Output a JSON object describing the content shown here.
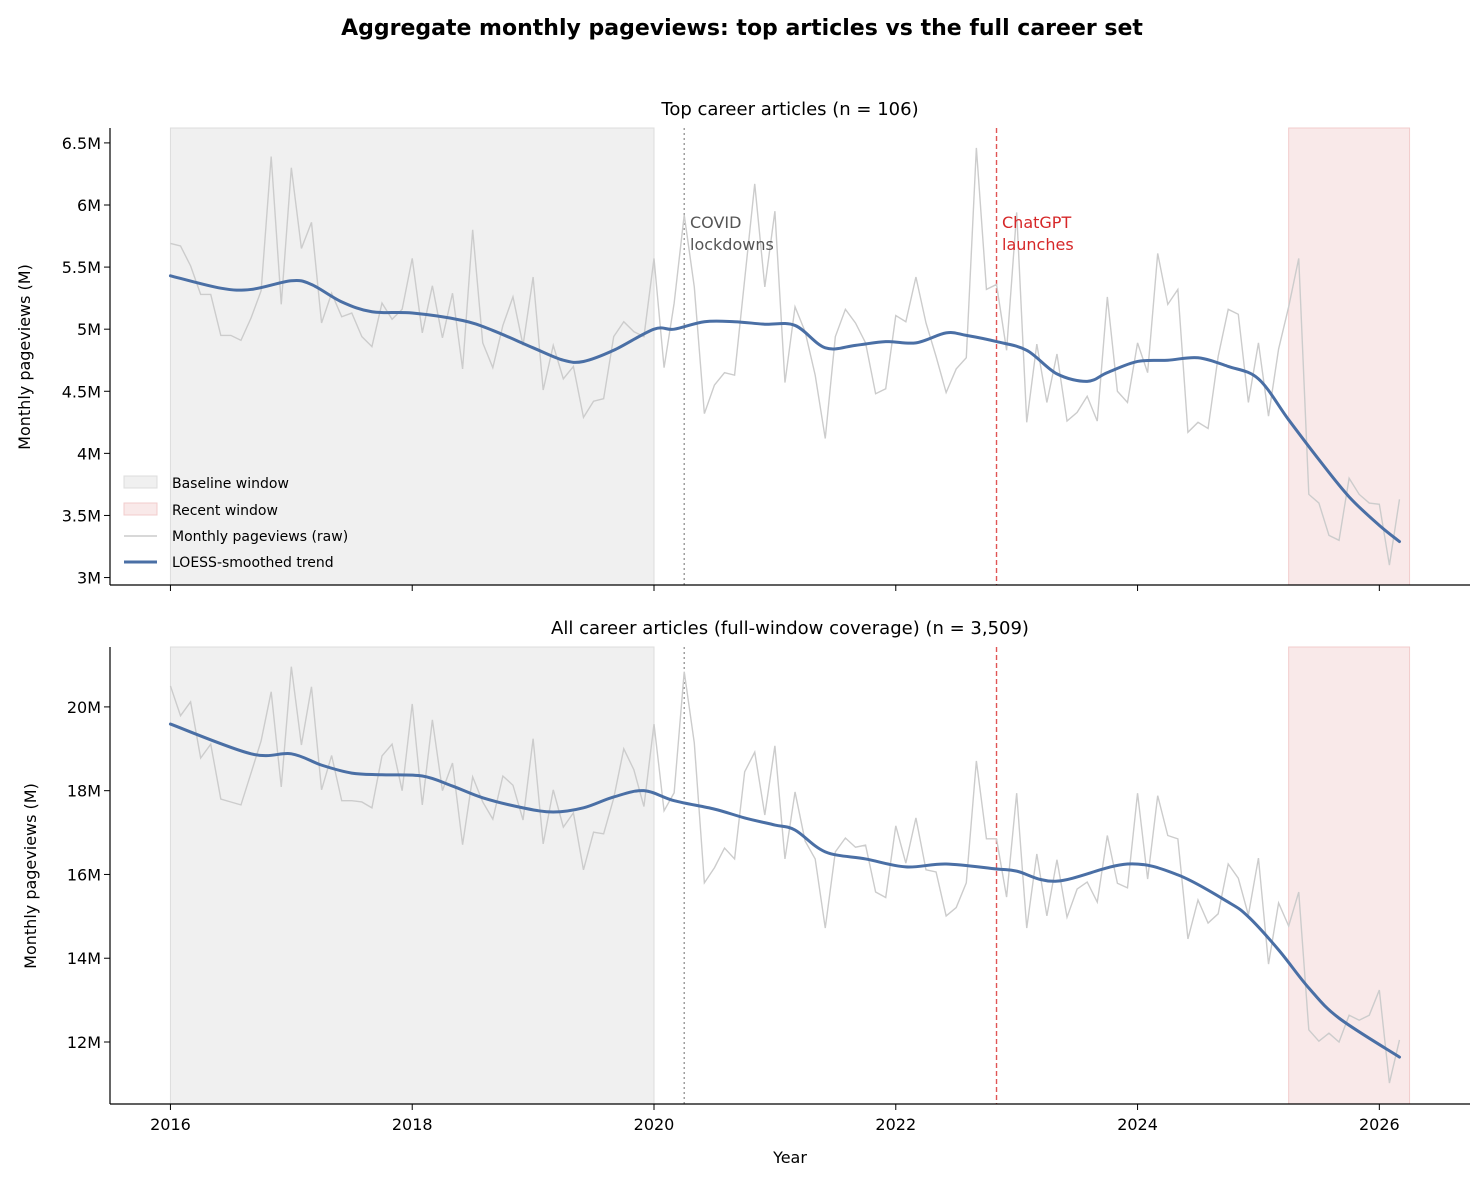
{
  "title": "Aggregate monthly pageviews: top articles vs the full career set",
  "colors": {
    "raw": "#cccccc",
    "trend": "#4a6fa5",
    "baseline_fill": "#f0f0f0",
    "recent_fill": "#f9e9e9",
    "covid_line": "#999999",
    "chatgpt_line": "#e05555",
    "covid_text": "#555555",
    "chatgpt_text": "#d62728"
  },
  "legend": {
    "placement": "lower-left",
    "items": [
      "Baseline window",
      "Recent window",
      "Monthly pageviews (raw)",
      "LOESS-smoothed trend"
    ]
  },
  "chart_data": [
    {
      "type": "line",
      "title": "Top career articles  (n = 106)",
      "xlabel": "",
      "ylabel": "Monthly pageviews (M)",
      "xlim": [
        "2015-07",
        "2026-10"
      ],
      "ylim": [
        2.94,
        6.62
      ],
      "x_ticks": [
        "2016",
        "2018",
        "2020",
        "2022",
        "2024",
        "2026"
      ],
      "x_tick_labels_shown": false,
      "y_ticks": [
        3,
        3.5,
        4,
        4.5,
        5,
        5.5,
        6,
        6.5
      ],
      "y_tick_labels": [
        "3M",
        "3.5M",
        "4M",
        "4.5M",
        "5M",
        "5.5M",
        "6M",
        "6.5M"
      ],
      "grid": false,
      "shaded_windows": [
        {
          "name": "Baseline window",
          "from": "2016-01",
          "to": "2020-01"
        },
        {
          "name": "Recent window",
          "from": "2025-04",
          "to": "2026-04"
        }
      ],
      "events": [
        {
          "label": "COVID\nlockdowns",
          "line1": "COVID",
          "line2": "lockdowns",
          "date": "2020-04",
          "style": "dotted"
        },
        {
          "label": "ChatGPT\nlaunches",
          "line1": "ChatGPT",
          "line2": "launches",
          "date": "2022-11",
          "style": "dashed"
        }
      ],
      "series": [
        {
          "name": "Monthly pageviews (raw)",
          "start": "2016-01",
          "frequency": "monthly",
          "values": [
            5.69,
            5.67,
            5.51,
            5.28,
            5.28,
            4.95,
            4.95,
            4.91,
            5.09,
            5.31,
            6.39,
            5.2,
            6.3,
            5.65,
            5.86,
            5.05,
            5.29,
            5.1,
            5.13,
            4.94,
            4.86,
            5.21,
            5.08,
            5.16,
            5.57,
            4.97,
            5.35,
            4.93,
            5.29,
            4.68,
            5.8,
            4.89,
            4.69,
            5.03,
            5.26,
            4.87,
            5.42,
            4.51,
            4.87,
            4.6,
            4.7,
            4.29,
            4.42,
            4.44,
            4.94,
            5.06,
            4.98,
            4.94,
            5.57,
            4.69,
            5.21,
            5.92,
            5.34,
            4.32,
            4.55,
            4.65,
            4.63,
            5.4,
            6.17,
            5.34,
            5.95,
            4.57,
            5.18,
            4.98,
            4.63,
            4.12,
            4.94,
            5.16,
            5.05,
            4.89,
            4.48,
            4.52,
            5.11,
            5.06,
            5.42,
            5.05,
            4.78,
            4.49,
            4.68,
            4.77,
            6.46,
            5.32,
            5.36,
            4.83,
            5.94,
            4.25,
            4.88,
            4.41,
            4.8,
            4.26,
            4.33,
            4.46,
            4.26,
            5.26,
            4.5,
            4.41,
            4.89,
            4.65,
            5.61,
            5.2,
            5.32,
            4.17,
            4.25,
            4.2,
            4.78,
            5.16,
            5.12,
            4.41,
            4.89,
            4.3,
            4.84,
            5.18,
            5.57,
            3.67,
            3.6,
            3.34,
            3.3,
            3.8,
            3.67,
            3.6,
            3.59,
            3.1,
            3.63
          ]
        },
        {
          "name": "LOESS-smoothed trend",
          "points": [
            [
              "2016-01",
              5.43
            ],
            [
              "2016-06",
              5.33
            ],
            [
              "2016-09",
              5.32
            ],
            [
              "2017-01",
              5.39
            ],
            [
              "2017-03",
              5.36
            ],
            [
              "2017-06",
              5.22
            ],
            [
              "2017-09",
              5.14
            ],
            [
              "2018-01",
              5.13
            ],
            [
              "2018-06",
              5.07
            ],
            [
              "2018-09",
              4.99
            ],
            [
              "2019-01",
              4.85
            ],
            [
              "2019-04",
              4.75
            ],
            [
              "2019-06",
              4.74
            ],
            [
              "2019-09",
              4.83
            ],
            [
              "2020-01",
              5.0
            ],
            [
              "2020-03",
              5.0
            ],
            [
              "2020-06",
              5.06
            ],
            [
              "2020-09",
              5.06
            ],
            [
              "2020-12",
              5.04
            ],
            [
              "2021-03",
              5.03
            ],
            [
              "2021-06",
              4.85
            ],
            [
              "2021-09",
              4.87
            ],
            [
              "2021-12",
              4.9
            ],
            [
              "2022-03",
              4.89
            ],
            [
              "2022-06",
              4.97
            ],
            [
              "2022-08",
              4.95
            ],
            [
              "2022-11",
              4.9
            ],
            [
              "2023-02",
              4.83
            ],
            [
              "2023-05",
              4.64
            ],
            [
              "2023-08",
              4.58
            ],
            [
              "2023-10",
              4.65
            ],
            [
              "2024-01",
              4.74
            ],
            [
              "2024-04",
              4.75
            ],
            [
              "2024-07",
              4.77
            ],
            [
              "2024-10",
              4.7
            ],
            [
              "2025-01",
              4.6
            ],
            [
              "2025-04",
              4.27
            ],
            [
              "2025-07",
              3.95
            ],
            [
              "2025-10",
              3.65
            ],
            [
              "2026-01",
              3.42
            ],
            [
              "2026-03",
              3.29
            ]
          ]
        }
      ]
    },
    {
      "type": "line",
      "title": "All career articles (full-window coverage)  (n = 3,509)",
      "xlabel": "Year",
      "ylabel": "Monthly pageviews (M)",
      "xlim": [
        "2015-07",
        "2026-10"
      ],
      "ylim": [
        10.52,
        21.43
      ],
      "x_ticks": [
        "2016",
        "2018",
        "2020",
        "2022",
        "2024",
        "2026"
      ],
      "x_tick_labels": [
        "2016",
        "2018",
        "2020",
        "2022",
        "2024",
        "2026"
      ],
      "y_ticks": [
        12,
        14,
        16,
        18,
        20
      ],
      "y_tick_labels": [
        "12M",
        "14M",
        "16M",
        "18M",
        "20M"
      ],
      "grid": false,
      "shaded_windows": [
        {
          "name": "Baseline window",
          "from": "2016-01",
          "to": "2020-01"
        },
        {
          "name": "Recent window",
          "from": "2025-04",
          "to": "2026-04"
        }
      ],
      "events": [
        {
          "date": "2020-04",
          "style": "dotted"
        },
        {
          "date": "2022-11",
          "style": "dashed"
        }
      ],
      "series": [
        {
          "name": "Monthly pageviews (raw)",
          "start": "2016-01",
          "frequency": "monthly",
          "values": [
            20.5,
            19.79,
            20.12,
            18.78,
            19.11,
            17.8,
            17.73,
            17.66,
            18.42,
            19.19,
            20.36,
            18.09,
            20.96,
            19.09,
            20.48,
            18.02,
            18.84,
            17.76,
            17.76,
            17.73,
            17.59,
            18.83,
            19.11,
            18.0,
            20.07,
            17.66,
            19.69,
            18.0,
            18.66,
            16.71,
            18.33,
            17.73,
            17.32,
            18.35,
            18.13,
            17.3,
            19.24,
            16.73,
            18.02,
            17.13,
            17.47,
            16.11,
            17.01,
            16.97,
            17.82,
            19.0,
            18.5,
            17.62,
            19.59,
            17.52,
            17.95,
            20.84,
            19.14,
            15.8,
            16.16,
            16.63,
            16.37,
            18.45,
            18.92,
            17.42,
            19.07,
            16.37,
            17.97,
            16.8,
            16.37,
            14.72,
            16.54,
            16.87,
            16.65,
            16.7,
            15.58,
            15.45,
            17.16,
            16.27,
            17.35,
            16.11,
            16.06,
            15.01,
            15.21,
            15.8,
            18.71,
            16.85,
            16.85,
            15.46,
            17.94,
            14.72,
            16.49,
            15.01,
            16.35,
            14.98,
            15.65,
            15.82,
            15.34,
            16.93,
            15.79,
            15.68,
            17.94,
            15.89,
            17.88,
            16.93,
            16.85,
            14.46,
            15.39,
            14.84,
            15.06,
            16.25,
            15.91,
            15.03,
            16.39,
            13.86,
            15.32,
            14.77,
            15.58,
            12.29,
            12.02,
            12.21,
            12.0,
            12.64,
            12.52,
            12.64,
            13.24,
            11.02,
            12.05
          ]
        },
        {
          "name": "LOESS-smoothed trend",
          "points": [
            [
              "2016-01",
              19.59
            ],
            [
              "2016-09",
              18.88
            ],
            [
              "2017-01",
              18.88
            ],
            [
              "2017-04",
              18.61
            ],
            [
              "2017-07",
              18.42
            ],
            [
              "2017-10",
              18.38
            ],
            [
              "2018-02",
              18.35
            ],
            [
              "2018-05",
              18.11
            ],
            [
              "2018-08",
              17.83
            ],
            [
              "2018-12",
              17.59
            ],
            [
              "2019-03",
              17.49
            ],
            [
              "2019-06",
              17.59
            ],
            [
              "2019-09",
              17.85
            ],
            [
              "2019-12",
              18.0
            ],
            [
              "2020-03",
              17.76
            ],
            [
              "2020-07",
              17.56
            ],
            [
              "2020-10",
              17.35
            ],
            [
              "2021-01",
              17.18
            ],
            [
              "2021-03",
              17.06
            ],
            [
              "2021-06",
              16.54
            ],
            [
              "2021-10",
              16.37
            ],
            [
              "2022-02",
              16.18
            ],
            [
              "2022-06",
              16.25
            ],
            [
              "2022-11",
              16.13
            ],
            [
              "2023-01",
              16.08
            ],
            [
              "2023-05",
              15.84
            ],
            [
              "2023-12",
              16.25
            ],
            [
              "2024-05",
              15.99
            ],
            [
              "2024-10",
              15.34
            ],
            [
              "2024-12",
              14.99
            ],
            [
              "2025-03",
              14.2
            ],
            [
              "2025-06",
              13.29
            ],
            [
              "2025-09",
              12.57
            ],
            [
              "2026-03",
              11.64
            ]
          ]
        }
      ]
    }
  ]
}
